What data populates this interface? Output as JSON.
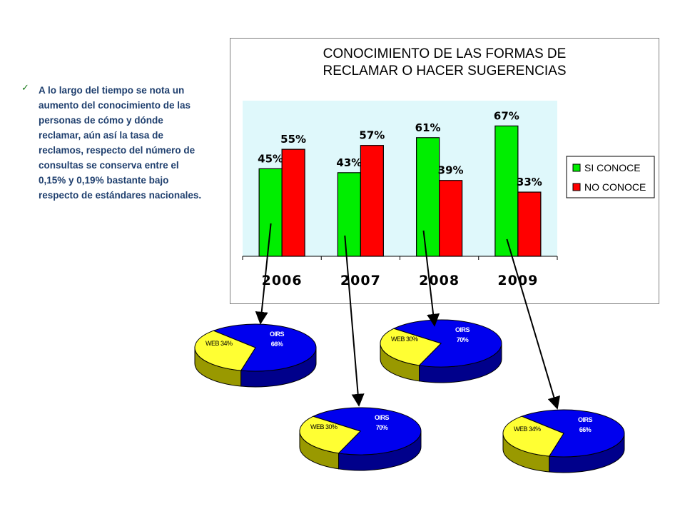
{
  "note": {
    "bullet_text": "A lo largo del tiempo se nota un aumento del conocimiento de las personas de cómo y dónde reclamar, aún así la tasa de reclamos, respecto del número de consultas se conserva entre el 0,15% y 0,19% bastante bajo respecto de estándares nacionales."
  },
  "colors": {
    "si": "#00ee00",
    "no": "#ff0000",
    "plot_bg": "#dff8fb",
    "pie_web": "#ffff33",
    "pie_oirs": "#0000ee",
    "pie_web_side": "#999900",
    "pie_oirs_side": "#00008b"
  },
  "chart_data": [
    {
      "type": "bar",
      "title": "CONOCIMIENTO DE LAS FORMAS DE\nRECLAMAR O HACER SUGERENCIAS",
      "categories": [
        "2006",
        "2007",
        "2008",
        "2009"
      ],
      "series": [
        {
          "name": "SI CONOCE",
          "values": [
            45,
            43,
            61,
            67
          ],
          "labels": [
            "45%",
            "43%",
            "61%",
            "67%"
          ]
        },
        {
          "name": "NO CONOCE",
          "values": [
            55,
            57,
            39,
            33
          ],
          "labels": [
            "55%",
            "57%",
            "39%",
            "33%"
          ]
        }
      ],
      "ylim": [
        0,
        80
      ],
      "legend": "right",
      "grid": false
    },
    {
      "type": "pie",
      "year": "2006",
      "slices": [
        {
          "name": "WEB",
          "value": 34,
          "label": "34%"
        },
        {
          "name": "OIRS",
          "value": 66,
          "label": "66%"
        }
      ]
    },
    {
      "type": "pie",
      "year": "2007",
      "slices": [
        {
          "name": "WEB",
          "value": 30,
          "label": "30%"
        },
        {
          "name": "OIRS",
          "value": 70,
          "label": "70%"
        }
      ]
    },
    {
      "type": "pie",
      "year": "2008",
      "slices": [
        {
          "name": "WEB",
          "value": 30,
          "label": "30%"
        },
        {
          "name": "OIRS",
          "value": 70,
          "label": "70%"
        }
      ]
    },
    {
      "type": "pie",
      "year": "2009",
      "slices": [
        {
          "name": "WEB",
          "value": 34,
          "label": "34%"
        },
        {
          "name": "OIRS",
          "value": 66,
          "label": "66%"
        }
      ]
    }
  ]
}
